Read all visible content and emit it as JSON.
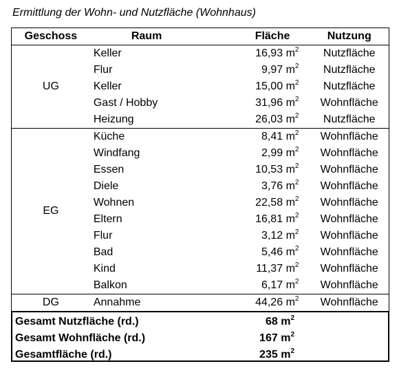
{
  "title": "Ermittlung der Wohn- und Nutzfläche (Wohnhaus)",
  "headers": {
    "geschoss": "Geschoss",
    "raum": "Raum",
    "flaeche": "Fläche",
    "nutzung": "Nutzung"
  },
  "unit": "m",
  "unit_exp": "2",
  "groups": [
    {
      "geschoss": "UG",
      "rows": [
        {
          "raum": "Keller",
          "flaeche": "16,93",
          "nutzung": "Nutzfläche"
        },
        {
          "raum": "Flur",
          "flaeche": "9,97",
          "nutzung": "Nutzfläche"
        },
        {
          "raum": "Keller",
          "flaeche": "15,00",
          "nutzung": "Nutzfläche"
        },
        {
          "raum": "Gast / Hobby",
          "flaeche": "31,96",
          "nutzung": "Wohnfläche"
        },
        {
          "raum": "Heizung",
          "flaeche": "26,03",
          "nutzung": "Nutzfläche"
        }
      ]
    },
    {
      "geschoss": "EG",
      "rows": [
        {
          "raum": "Küche",
          "flaeche": "8,41",
          "nutzung": "Wohnfläche"
        },
        {
          "raum": "Windfang",
          "flaeche": "2,99",
          "nutzung": "Wohnfläche"
        },
        {
          "raum": "Essen",
          "flaeche": "10,53",
          "nutzung": "Wohnfläche"
        },
        {
          "raum": "Diele",
          "flaeche": "3,76",
          "nutzung": "Wohnfläche"
        },
        {
          "raum": "Wohnen",
          "flaeche": "22,58",
          "nutzung": "Wohnfläche"
        },
        {
          "raum": "Eltern",
          "flaeche": "16,81",
          "nutzung": "Wohnfläche"
        },
        {
          "raum": "Flur",
          "flaeche": "3,12",
          "nutzung": "Wohnfläche"
        },
        {
          "raum": "Bad",
          "flaeche": "5,46",
          "nutzung": "Wohnfläche"
        },
        {
          "raum": "Kind",
          "flaeche": "11,37",
          "nutzung": "Wohnfläche"
        },
        {
          "raum": "Balkon",
          "flaeche": "6,17",
          "nutzung": "Wohnfläche"
        }
      ]
    },
    {
      "geschoss": "DG",
      "rows": [
        {
          "raum": "Annahme",
          "flaeche": "44,26",
          "nutzung": "Wohnfläche"
        }
      ]
    }
  ],
  "totals": [
    {
      "label": "Gesamt Nutzfläche (rd.)",
      "value": "68"
    },
    {
      "label": "Gesamt Wohnfläche (rd.)",
      "value": "167"
    },
    {
      "label": "Gesamtfläche (rd.)",
      "value": "235"
    }
  ]
}
